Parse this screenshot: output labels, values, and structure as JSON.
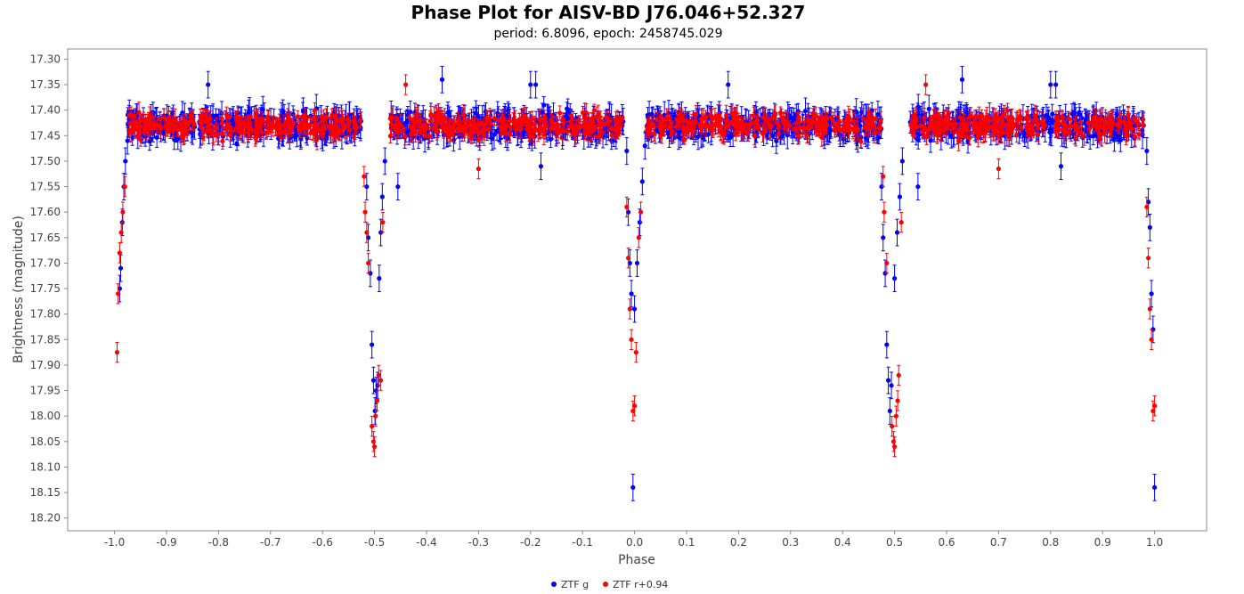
{
  "chart_data": {
    "type": "scatter",
    "title": "Phase Plot for AISV-BD J76.046+52.327",
    "subtitle": "period: 6.8096, epoch: 2458745.029",
    "xlabel": "Phase",
    "ylabel": "Brightness (magnitude)",
    "xlim": [
      -1.09,
      1.1
    ],
    "ylim": [
      18.225,
      17.28
    ],
    "y_inverted": true,
    "grid": false,
    "legend_position": "bottom-center",
    "x_ticks": [
      "-1.0",
      "-0.9",
      "-0.8",
      "-0.7",
      "-0.6",
      "-0.5",
      "-0.4",
      "-0.3",
      "-0.2",
      "-0.1",
      "0.0",
      "0.1",
      "0.2",
      "0.3",
      "0.4",
      "0.5",
      "0.6",
      "0.7",
      "0.8",
      "0.9",
      "1.0"
    ],
    "y_ticks": [
      "17.30",
      "17.35",
      "17.40",
      "17.45",
      "17.50",
      "17.55",
      "17.60",
      "17.65",
      "17.70",
      "17.75",
      "17.80",
      "17.85",
      "17.90",
      "17.95",
      "18.00",
      "18.05",
      "18.10",
      "18.15",
      "18.20"
    ],
    "series": [
      {
        "name": "ZTF g",
        "color": "#0000ff",
        "baseline": 17.43,
        "scatter": 0.025,
        "error": 0.02,
        "points": [
          [
            -0.99,
            17.75
          ],
          [
            -0.988,
            17.71
          ],
          [
            -0.985,
            17.62
          ],
          [
            -0.982,
            17.55
          ],
          [
            -0.979,
            17.5
          ],
          [
            -0.975,
            17.46
          ],
          [
            -0.515,
            17.55
          ],
          [
            -0.512,
            17.65
          ],
          [
            -0.508,
            17.72
          ],
          [
            -0.505,
            17.86
          ],
          [
            -0.502,
            17.93
          ],
          [
            -0.499,
            17.99
          ],
          [
            -0.497,
            17.95
          ],
          [
            -0.494,
            17.94
          ],
          [
            -0.491,
            17.73
          ],
          [
            -0.488,
            17.64
          ],
          [
            -0.485,
            17.57
          ],
          [
            -0.48,
            17.5
          ],
          [
            -0.455,
            17.55
          ],
          [
            -0.82,
            17.35
          ],
          [
            -0.37,
            17.34
          ],
          [
            -0.2,
            17.35
          ],
          [
            -0.19,
            17.35
          ],
          [
            -0.18,
            17.51
          ],
          [
            -0.015,
            17.48
          ],
          [
            -0.012,
            17.6
          ],
          [
            -0.009,
            17.7
          ],
          [
            -0.006,
            17.76
          ],
          [
            -0.003,
            18.14
          ],
          [
            0.0,
            17.79
          ],
          [
            0.005,
            17.7
          ],
          [
            0.01,
            17.62
          ],
          [
            0.015,
            17.54
          ],
          [
            0.02,
            17.47
          ],
          [
            0.985,
            17.48
          ],
          [
            0.988,
            17.58
          ],
          [
            0.991,
            17.63
          ],
          [
            0.994,
            17.76
          ],
          [
            0.997,
            17.83
          ],
          [
            1.0,
            18.14
          ],
          [
            0.475,
            17.55
          ],
          [
            0.478,
            17.65
          ],
          [
            0.482,
            17.72
          ],
          [
            0.485,
            17.86
          ],
          [
            0.488,
            17.93
          ],
          [
            0.491,
            17.99
          ],
          [
            0.494,
            17.94
          ],
          [
            0.5,
            17.73
          ],
          [
            0.505,
            17.64
          ],
          [
            0.51,
            17.57
          ],
          [
            0.515,
            17.5
          ],
          [
            0.545,
            17.55
          ],
          [
            0.18,
            17.35
          ],
          [
            0.63,
            17.34
          ],
          [
            0.8,
            17.35
          ],
          [
            0.81,
            17.35
          ],
          [
            0.82,
            17.51
          ]
        ]
      },
      {
        "name": "ZTF r+0.94",
        "color": "#ff0000",
        "baseline": 17.43,
        "scatter": 0.022,
        "error": 0.015,
        "points": [
          [
            -0.995,
            17.875
          ],
          [
            -0.993,
            17.76
          ],
          [
            -0.99,
            17.68
          ],
          [
            -0.987,
            17.64
          ],
          [
            -0.984,
            17.6
          ],
          [
            -0.98,
            17.55
          ],
          [
            -0.52,
            17.53
          ],
          [
            -0.518,
            17.6
          ],
          [
            -0.515,
            17.64
          ],
          [
            -0.512,
            17.7
          ],
          [
            -0.505,
            18.02
          ],
          [
            -0.502,
            18.05
          ],
          [
            -0.5,
            18.06
          ],
          [
            -0.498,
            18.0
          ],
          [
            -0.495,
            17.97
          ],
          [
            -0.492,
            17.92
          ],
          [
            -0.488,
            17.93
          ],
          [
            -0.484,
            17.62
          ],
          [
            -0.44,
            17.35
          ],
          [
            -0.3,
            17.515
          ],
          [
            -0.015,
            17.59
          ],
          [
            -0.012,
            17.69
          ],
          [
            -0.009,
            17.79
          ],
          [
            -0.006,
            17.85
          ],
          [
            -0.003,
            17.99
          ],
          [
            0.0,
            17.98
          ],
          [
            0.003,
            17.875
          ],
          [
            0.008,
            17.65
          ],
          [
            0.012,
            17.6
          ],
          [
            0.985,
            17.59
          ],
          [
            0.988,
            17.69
          ],
          [
            0.991,
            17.79
          ],
          [
            0.994,
            17.85
          ],
          [
            0.997,
            17.99
          ],
          [
            1.0,
            17.98
          ],
          [
            0.478,
            17.53
          ],
          [
            0.48,
            17.6
          ],
          [
            0.485,
            17.7
          ],
          [
            0.495,
            18.02
          ],
          [
            0.498,
            18.05
          ],
          [
            0.5,
            18.06
          ],
          [
            0.503,
            18.0
          ],
          [
            0.506,
            17.97
          ],
          [
            0.508,
            17.92
          ],
          [
            0.513,
            17.62
          ],
          [
            0.56,
            17.35
          ],
          [
            0.7,
            17.515
          ]
        ]
      }
    ]
  },
  "legend": {
    "g_label": "ZTF g",
    "r_label": "ZTF r+0.94",
    "g_color": "#0000ff",
    "r_color": "#ff0000"
  }
}
